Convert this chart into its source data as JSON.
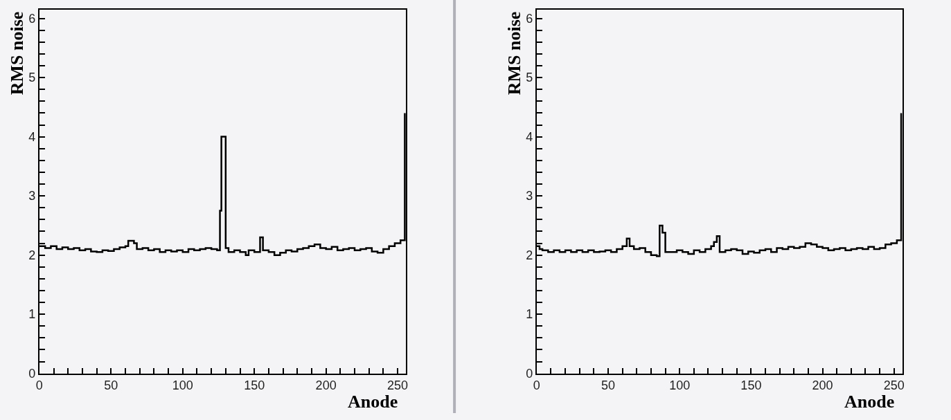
{
  "chart_data": [
    {
      "type": "step",
      "xlabel": "Anode",
      "ylabel": "RMS noise",
      "xlim": [
        0,
        256
      ],
      "ylim": [
        0,
        6.15
      ],
      "grid": false,
      "marker": "none",
      "line_style": "solid",
      "xticks": [
        0,
        {
          "value": 10,
          "label": null
        },
        {
          "value": 20,
          "label": null
        },
        {
          "value": 30,
          "label": null
        },
        {
          "value": 40,
          "label": null
        },
        50,
        {
          "value": 60,
          "label": null
        },
        {
          "value": 70,
          "label": null
        },
        {
          "value": 80,
          "label": null
        },
        {
          "value": 90,
          "label": null
        },
        100,
        {
          "value": 110,
          "label": null
        },
        {
          "value": 120,
          "label": null
        },
        {
          "value": 130,
          "label": null
        },
        {
          "value": 140,
          "label": null
        },
        150,
        {
          "value": 160,
          "label": null
        },
        {
          "value": 170,
          "label": null
        },
        {
          "value": 180,
          "label": null
        },
        {
          "value": 190,
          "label": null
        },
        200,
        {
          "value": 210,
          "label": null
        },
        {
          "value": 220,
          "label": null
        },
        {
          "value": 230,
          "label": null
        },
        {
          "value": 240,
          "label": null
        },
        250
      ],
      "yticks": [
        0,
        {
          "value": 0.2,
          "label": null
        },
        {
          "value": 0.4,
          "label": null
        },
        {
          "value": 0.6,
          "label": null
        },
        {
          "value": 0.8,
          "label": null
        },
        1,
        {
          "value": 1.2,
          "label": null
        },
        {
          "value": 1.4,
          "label": null
        },
        {
          "value": 1.6,
          "label": null
        },
        {
          "value": 1.8,
          "label": null
        },
        2,
        {
          "value": 2.2,
          "label": null
        },
        {
          "value": 2.4,
          "label": null
        },
        {
          "value": 2.6,
          "label": null
        },
        {
          "value": 2.8,
          "label": null
        },
        3,
        {
          "value": 3.2,
          "label": null
        },
        {
          "value": 3.4,
          "label": null
        },
        {
          "value": 3.6,
          "label": null
        },
        {
          "value": 3.8,
          "label": null
        },
        4,
        {
          "value": 4.2,
          "label": null
        },
        {
          "value": 4.4,
          "label": null
        },
        {
          "value": 4.6,
          "label": null
        },
        {
          "value": 4.8,
          "label": null
        },
        5,
        {
          "value": 5.2,
          "label": null
        },
        {
          "value": 5.4,
          "label": null
        },
        {
          "value": 5.6,
          "label": null
        },
        {
          "value": 5.8,
          "label": null
        },
        6
      ],
      "series": [
        {
          "color": "#000000",
          "x": [
            0,
            4,
            8,
            12,
            16,
            20,
            24,
            28,
            32,
            36,
            40,
            44,
            48,
            52,
            56,
            60,
            62,
            66,
            68,
            72,
            76,
            80,
            84,
            88,
            92,
            96,
            100,
            104,
            108,
            112,
            116,
            120,
            124,
            126,
            127,
            130,
            132,
            136,
            140,
            144,
            146,
            150,
            154,
            156,
            160,
            164,
            168,
            172,
            176,
            180,
            184,
            188,
            192,
            196,
            200,
            204,
            208,
            212,
            216,
            220,
            224,
            228,
            232,
            236,
            240,
            244,
            248,
            252,
            255
          ],
          "values": [
            2.15,
            2.12,
            2.15,
            2.1,
            2.13,
            2.1,
            2.12,
            2.08,
            2.1,
            2.06,
            2.05,
            2.08,
            2.07,
            2.1,
            2.13,
            2.15,
            2.24,
            2.2,
            2.1,
            2.12,
            2.08,
            2.1,
            2.05,
            2.08,
            2.06,
            2.08,
            2.05,
            2.1,
            2.08,
            2.1,
            2.12,
            2.1,
            2.08,
            2.75,
            4.0,
            2.12,
            2.05,
            2.08,
            2.05,
            2.0,
            2.08,
            2.05,
            2.3,
            2.08,
            2.05,
            2.0,
            2.04,
            2.08,
            2.06,
            2.1,
            2.12,
            2.15,
            2.18,
            2.12,
            2.1,
            2.14,
            2.08,
            2.1,
            2.12,
            2.08,
            2.1,
            2.12,
            2.06,
            2.04,
            2.1,
            2.15,
            2.2,
            2.25,
            4.4
          ]
        }
      ]
    },
    {
      "type": "step",
      "xlabel": "Anode",
      "ylabel": "RMS noise",
      "xlim": [
        0,
        256
      ],
      "ylim": [
        0,
        6.15
      ],
      "grid": false,
      "marker": "none",
      "line_style": "solid",
      "xticks": [
        0,
        {
          "value": 10,
          "label": null
        },
        {
          "value": 20,
          "label": null
        },
        {
          "value": 30,
          "label": null
        },
        {
          "value": 40,
          "label": null
        },
        50,
        {
          "value": 60,
          "label": null
        },
        {
          "value": 70,
          "label": null
        },
        {
          "value": 80,
          "label": null
        },
        {
          "value": 90,
          "label": null
        },
        100,
        {
          "value": 110,
          "label": null
        },
        {
          "value": 120,
          "label": null
        },
        {
          "value": 130,
          "label": null
        },
        {
          "value": 140,
          "label": null
        },
        150,
        {
          "value": 160,
          "label": null
        },
        {
          "value": 170,
          "label": null
        },
        {
          "value": 180,
          "label": null
        },
        {
          "value": 190,
          "label": null
        },
        200,
        {
          "value": 210,
          "label": null
        },
        {
          "value": 220,
          "label": null
        },
        {
          "value": 230,
          "label": null
        },
        {
          "value": 240,
          "label": null
        },
        250
      ],
      "yticks": [
        0,
        {
          "value": 0.2,
          "label": null
        },
        {
          "value": 0.4,
          "label": null
        },
        {
          "value": 0.6,
          "label": null
        },
        {
          "value": 0.8,
          "label": null
        },
        1,
        {
          "value": 1.2,
          "label": null
        },
        {
          "value": 1.4,
          "label": null
        },
        {
          "value": 1.6,
          "label": null
        },
        {
          "value": 1.8,
          "label": null
        },
        2,
        {
          "value": 2.2,
          "label": null
        },
        {
          "value": 2.4,
          "label": null
        },
        {
          "value": 2.6,
          "label": null
        },
        {
          "value": 2.8,
          "label": null
        },
        3,
        {
          "value": 3.2,
          "label": null
        },
        {
          "value": 3.4,
          "label": null
        },
        {
          "value": 3.6,
          "label": null
        },
        {
          "value": 3.8,
          "label": null
        },
        4,
        {
          "value": 4.2,
          "label": null
        },
        {
          "value": 4.4,
          "label": null
        },
        {
          "value": 4.6,
          "label": null
        },
        {
          "value": 4.8,
          "label": null
        },
        5,
        {
          "value": 5.2,
          "label": null
        },
        {
          "value": 5.4,
          "label": null
        },
        {
          "value": 5.6,
          "label": null
        },
        {
          "value": 5.8,
          "label": null
        },
        6
      ],
      "series": [
        {
          "color": "#000000",
          "x": [
            0,
            2,
            4,
            8,
            12,
            16,
            20,
            24,
            28,
            32,
            36,
            40,
            44,
            48,
            52,
            56,
            60,
            63,
            65,
            68,
            72,
            76,
            80,
            84,
            86,
            88,
            90,
            94,
            98,
            102,
            106,
            110,
            114,
            118,
            122,
            124,
            126,
            128,
            132,
            136,
            140,
            144,
            148,
            152,
            156,
            160,
            164,
            168,
            172,
            176,
            180,
            184,
            188,
            192,
            196,
            200,
            204,
            208,
            212,
            216,
            220,
            224,
            228,
            232,
            236,
            240,
            244,
            248,
            252,
            255
          ],
          "values": [
            2.15,
            2.1,
            2.08,
            2.05,
            2.08,
            2.05,
            2.08,
            2.05,
            2.08,
            2.05,
            2.08,
            2.05,
            2.06,
            2.08,
            2.05,
            2.1,
            2.15,
            2.28,
            2.15,
            2.1,
            2.12,
            2.05,
            2.0,
            1.98,
            2.5,
            2.38,
            2.05,
            2.05,
            2.08,
            2.05,
            2.02,
            2.08,
            2.05,
            2.1,
            2.15,
            2.22,
            2.32,
            2.05,
            2.08,
            2.1,
            2.08,
            2.02,
            2.06,
            2.04,
            2.08,
            2.1,
            2.05,
            2.12,
            2.1,
            2.14,
            2.12,
            2.14,
            2.2,
            2.18,
            2.14,
            2.12,
            2.08,
            2.1,
            2.12,
            2.08,
            2.1,
            2.12,
            2.1,
            2.14,
            2.1,
            2.12,
            2.18,
            2.2,
            2.25,
            4.4
          ]
        }
      ]
    }
  ]
}
